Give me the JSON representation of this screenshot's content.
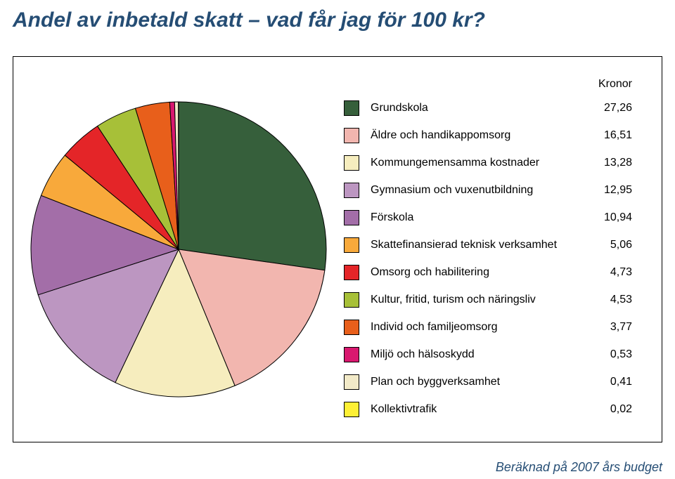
{
  "title": "Andel av inbetald skatt – vad får jag för 100 kr?",
  "title_color": "#254d74",
  "title_fontsize": 30,
  "panel": {
    "border_color": "#000000",
    "background_color": "#ffffff"
  },
  "pie_chart": {
    "type": "pie",
    "start_angle_deg": -90,
    "radius": 210,
    "stroke_color": "#000000",
    "stroke_width": 1,
    "background_color": "#ffffff",
    "slices": [
      {
        "label": "Grundskola",
        "value": 27.26,
        "color": "#365f3b"
      },
      {
        "label": "Äldre och handikappomsorg",
        "value": 16.51,
        "color": "#f2b6af"
      },
      {
        "label": "Kommungemensamma kostnader",
        "value": 13.28,
        "color": "#f6edbe"
      },
      {
        "label": "Gymnasium och vuxenutbildning",
        "value": 12.95,
        "color": "#bc96c1"
      },
      {
        "label": "Förskola",
        "value": 10.94,
        "color": "#a36ea8"
      },
      {
        "label": "Skattefinansierad teknisk verksamhet",
        "value": 5.06,
        "color": "#f8a93b"
      },
      {
        "label": "Omsorg och habilitering",
        "value": 4.73,
        "color": "#e42528"
      },
      {
        "label": "Kultur, fritid, turism och näringsliv",
        "value": 4.53,
        "color": "#a7c038"
      },
      {
        "label": "Individ och familjeomsorg",
        "value": 3.77,
        "color": "#e85f1b"
      },
      {
        "label": "Miljö och hälsoskydd",
        "value": 0.53,
        "color": "#d9186f"
      },
      {
        "label": "Plan och byggverksamhet",
        "value": 0.41,
        "color": "#f2eac8"
      },
      {
        "label": "Kollektivtrafik",
        "value": 0.02,
        "color": "#fef035"
      }
    ]
  },
  "legend": {
    "header": "Kronor",
    "label_fontsize": 16,
    "value_fontsize": 16,
    "header_fontsize": 16,
    "text_color": "#000000"
  },
  "footnote": {
    "text": "Beräknad på 2007 års budget",
    "color": "#264e75",
    "fontsize": 18
  }
}
